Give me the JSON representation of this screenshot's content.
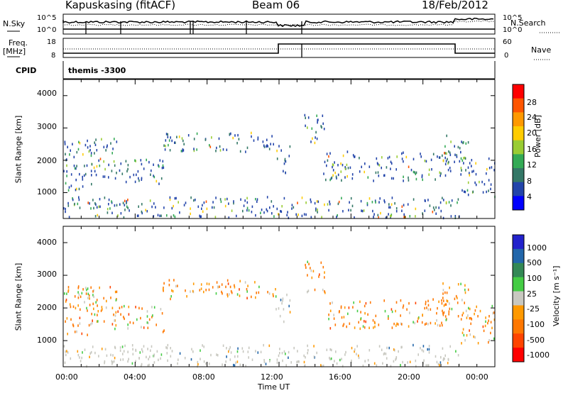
{
  "header": {
    "station": "Kapuskasing (fitACF)",
    "beam": "Beam 06",
    "date": "18/Feb/2012"
  },
  "top_panels": {
    "nsky_label": "N.Sky",
    "nsky_ticks": [
      "10^5",
      "10^0"
    ],
    "nsearch_label": "N.Search",
    "nsearch_ticks": [
      "10^5",
      "10^0"
    ],
    "freq_label": "Freq.",
    "freq_unit": "[MHz]",
    "freq_ticks": [
      "18",
      "8"
    ],
    "nave_label": "Nave",
    "nave_ticks": [
      "60",
      "0"
    ],
    "cpid_label": "CPID",
    "cpid_value": "themis -3300"
  },
  "chart_data": [
    {
      "type": "heatmap",
      "name": "power",
      "ylabel": "Slant Range [km]",
      "ylim": [
        200,
        4500
      ],
      "yticks": [
        1000,
        2000,
        3000,
        4000
      ],
      "xlim": [
        0,
        24
      ],
      "colorbar": {
        "label": "Power [dB]",
        "ticks": [
          "28",
          "24",
          "20",
          "16",
          "12",
          "8",
          "4"
        ],
        "colors": [
          "#ff0000",
          "#ff5500",
          "#ff9900",
          "#ffcc00",
          "#99cc33",
          "#33aa55",
          "#337766",
          "#2244aa",
          "#0000ff"
        ]
      }
    },
    {
      "type": "heatmap",
      "name": "velocity",
      "ylabel": "Slant Range [km]",
      "ylim": [
        200,
        4500
      ],
      "yticks": [
        1000,
        2000,
        3000,
        4000
      ],
      "xlim": [
        0,
        24
      ],
      "colorbar": {
        "label": "Velocity [m s⁻¹]",
        "ticks": [
          "1000",
          "500",
          "100",
          "25",
          "-25",
          "-100",
          "-500",
          "-1000"
        ],
        "colors": [
          "#2222cc",
          "#2266aa",
          "#338855",
          "#44cc44",
          "#c8c8c0",
          "#ff9900",
          "#ff7700",
          "#ff4400",
          "#ff0000"
        ]
      }
    }
  ],
  "time_axis": {
    "ticks": [
      "00:00",
      "04:00",
      "08:00",
      "12:00",
      "16:00",
      "20:00",
      "00:00"
    ],
    "label": "Time UT"
  }
}
